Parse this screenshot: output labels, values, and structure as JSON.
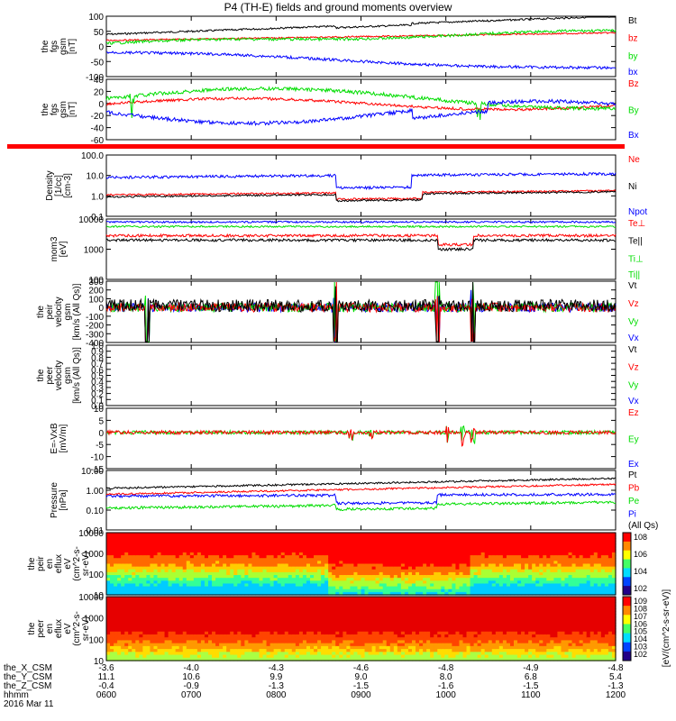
{
  "title": "P4 (TH-E) fields and ground moments overview",
  "colors": {
    "black": "#000000",
    "red": "#ff0000",
    "green": "#00dd00",
    "blue": "#0000ff"
  },
  "chart_data": [
    {
      "type": "line",
      "id": "p1",
      "ylabel": [
        "the",
        "fgs",
        "gsm",
        "[nT]"
      ],
      "ylim": [
        -100,
        100
      ],
      "yticks": [
        "100",
        "50",
        "0",
        "-50",
        "-100"
      ],
      "series": [
        {
          "name": "Bt",
          "color": "black"
        },
        {
          "name": "bz",
          "color": "red"
        },
        {
          "name": "by",
          "color": "green"
        },
        {
          "name": "bx",
          "color": "blue"
        }
      ],
      "approx_levels": {
        "Bt": [
          40,
          45,
          50,
          55,
          60,
          70,
          80,
          90,
          100
        ],
        "bz": [
          20,
          22,
          18,
          20,
          25,
          30,
          35,
          40,
          45
        ],
        "by": [
          10,
          15,
          20,
          25,
          30,
          35,
          40,
          45,
          50
        ],
        "bx": [
          -20,
          -25,
          -30,
          -40,
          -50,
          -55,
          -60,
          -70,
          -80
        ]
      }
    },
    {
      "type": "line",
      "id": "p2",
      "ylabel": [
        "the",
        "fgs",
        "gsm",
        "[nT]"
      ],
      "ylim": [
        -70,
        40
      ],
      "yticks": [
        "40",
        "20",
        "0",
        "-20",
        "-40",
        "-60"
      ],
      "series": [
        {
          "name": "Bz",
          "color": "red"
        },
        {
          "name": "By",
          "color": "green"
        },
        {
          "name": "Bx",
          "color": "blue"
        }
      ]
    },
    {
      "type": "line",
      "id": "p3",
      "ylabel": [
        "Density",
        "[1/cc]",
        "[cm-3]"
      ],
      "yscale": "log",
      "ylim": [
        0.1,
        100
      ],
      "yticks": [
        "100.0",
        "10.0",
        "1.0",
        "0.1"
      ],
      "series": [
        {
          "name": "Ne",
          "color": "red"
        },
        {
          "name": "Ni",
          "color": "black"
        },
        {
          "name": "Npot",
          "color": "blue"
        }
      ]
    },
    {
      "type": "line",
      "id": "p4",
      "ylabel": [
        "mom3",
        "[eV]"
      ],
      "yscale": "log",
      "ylim": [
        100,
        10000
      ],
      "yticks": [
        "10000",
        "1000",
        "100"
      ],
      "series": [
        {
          "name": "Te⊥",
          "color": "red"
        },
        {
          "name": "Te||",
          "color": "black"
        },
        {
          "name": "Ti⊥",
          "color": "green"
        },
        {
          "name": "Ti||",
          "color": "green"
        }
      ]
    },
    {
      "type": "line",
      "id": "p5",
      "ylabel": [
        "the",
        "peir",
        "velocity",
        "gsm",
        "[km/s (All Qs)]"
      ],
      "ylim": [
        -400,
        300
      ],
      "yticks": [
        "300",
        "200",
        "100",
        "0",
        "-100",
        "-200",
        "-300",
        "-400"
      ],
      "series": [
        {
          "name": "Vt",
          "color": "black"
        },
        {
          "name": "Vz",
          "color": "red"
        },
        {
          "name": "Vy",
          "color": "green"
        },
        {
          "name": "Vx",
          "color": "blue"
        }
      ]
    },
    {
      "type": "line",
      "id": "p6",
      "ylabel": [
        "the",
        "peer",
        "velocity",
        "gsm",
        "[km/s (All Qs)]"
      ],
      "ylim": [
        0,
        1
      ],
      "yticks": [
        "1.0",
        "0.9",
        "0.8",
        "0.7",
        "0.6",
        "0.5",
        "0.4",
        "0.3",
        "0.2",
        "0.1",
        "0.0"
      ],
      "series": [
        {
          "name": "Vt",
          "color": "black"
        },
        {
          "name": "Vz",
          "color": "red"
        },
        {
          "name": "Vy",
          "color": "green"
        },
        {
          "name": "Vx",
          "color": "blue"
        }
      ]
    },
    {
      "type": "line",
      "id": "p7",
      "ylabel": [
        "E=-VxB",
        "[mV/m]"
      ],
      "ylim": [
        -15,
        10
      ],
      "yticks": [
        "10",
        "5",
        "0",
        "-5",
        "-10",
        "-15"
      ],
      "series": [
        {
          "name": "Ez",
          "color": "red"
        },
        {
          "name": "Ey",
          "color": "green"
        },
        {
          "name": "Ex",
          "color": "blue"
        }
      ]
    },
    {
      "type": "line",
      "id": "p8",
      "ylabel": [
        "Pressure",
        "[nPa]"
      ],
      "yscale": "log",
      "ylim": [
        0.01,
        10
      ],
      "yticks": [
        "10.00",
        "1.00",
        "0.10",
        "0.01"
      ],
      "series": [
        {
          "name": "Pt",
          "color": "black"
        },
        {
          "name": "Pb",
          "color": "red"
        },
        {
          "name": "Pe",
          "color": "green"
        },
        {
          "name": "Pi",
          "color": "blue"
        },
        {
          "name": "(All Qs)",
          "color": "black"
        }
      ]
    },
    {
      "type": "heatmap",
      "id": "p9",
      "ylabel": [
        "the",
        "peir",
        "en",
        "eflux",
        "eV",
        "(cm^2-s-",
        "sr-eV)"
      ],
      "yscale": "log",
      "ylim": [
        5,
        20000
      ],
      "yticks": [
        "10000",
        "1000",
        "100",
        "10"
      ],
      "colorbar": {
        "ticks": [
          "10^8",
          "10^6",
          "10^4",
          "10^2"
        ],
        "label": "eV/(cm^2-s-sr-eV) (All Qs)"
      }
    },
    {
      "type": "heatmap",
      "id": "p10",
      "ylabel": [
        "the",
        "peer",
        "en",
        "eflux",
        "eV",
        "(cm^2-s-",
        "sr-eV)"
      ],
      "yscale": "log",
      "ylim": [
        5,
        20000
      ],
      "yticks": [
        "10000",
        "1000",
        "100",
        "10"
      ],
      "colorbar": {
        "ticks": [
          "10^9",
          "10^8",
          "10^7",
          "10^6",
          "10^5",
          "10^4",
          "10^3",
          "10^2"
        ],
        "label": "[eV/(cm^2-s-sr-eV)]"
      }
    }
  ],
  "x_axis": {
    "labels": [
      "the_X_CSM",
      "the_Y_CSM",
      "the_Z_CSM",
      "hhmm",
      "2016 Mar 11"
    ],
    "columns": [
      {
        "x": "-3.6",
        "y": "11.1",
        "z": "-0.4",
        "t": "0600"
      },
      {
        "x": "-4.0",
        "y": "10.6",
        "z": "-0.9",
        "t": "0700"
      },
      {
        "x": "-4.3",
        "y": "9.9",
        "z": "-1.3",
        "t": "0800"
      },
      {
        "x": "-4.6",
        "y": "9.0",
        "z": "-1.5",
        "t": "0900"
      },
      {
        "x": "-4.8",
        "y": "8.0",
        "z": "-1.6",
        "t": "1000"
      },
      {
        "x": "-4.9",
        "y": "6.8",
        "z": "-1.5",
        "t": "1100"
      },
      {
        "x": "-4.8",
        "y": "5.4",
        "z": "-1.3",
        "t": "1200"
      }
    ]
  },
  "bottom_label": "[eV/(cm^2-s-sr-eV)]"
}
